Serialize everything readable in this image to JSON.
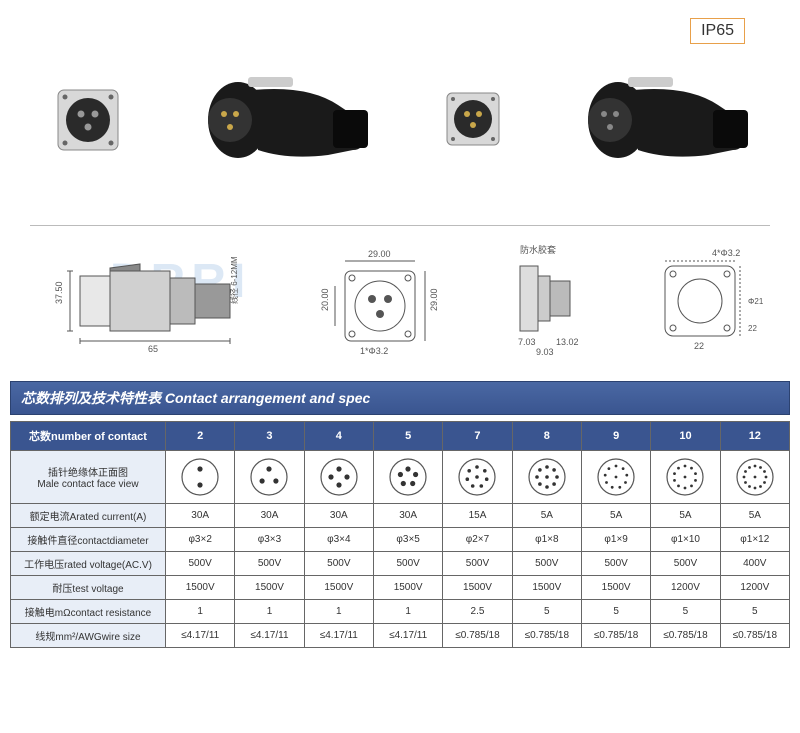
{
  "badge": {
    "text": "IP65",
    "border_color": "#e8a04a"
  },
  "watermark": "DRRI",
  "drawings": {
    "plug": {
      "length": "65",
      "height": "37.50",
      "cable_note": "线径 6-12MM"
    },
    "socket": {
      "width": "29.00",
      "height": "29.00",
      "inner_h": "20.00",
      "hole": "1*Φ3.2"
    },
    "side": {
      "label": "防水胶套",
      "d1": "7.03",
      "d2": "9.03",
      "d3": "13.02"
    },
    "mount": {
      "hole": "4*Φ3.2",
      "dia": "Φ21",
      "w": "22",
      "w2": "22"
    }
  },
  "section_title": "芯数排列及技术特性表  Contact arrangement and spec",
  "table": {
    "header_label": "芯数number of contact",
    "columns": [
      "2",
      "3",
      "4",
      "5",
      "7",
      "8",
      "9",
      "10",
      "12"
    ],
    "pin_counts": [
      2,
      3,
      4,
      5,
      7,
      8,
      9,
      10,
      12
    ],
    "rows": [
      {
        "label": "插针绝缘体正面图\nMale contact face view",
        "type": "face"
      },
      {
        "label": "额定电流Arated current(A)",
        "cells": [
          "30A",
          "30A",
          "30A",
          "30A",
          "15A",
          "5A",
          "5A",
          "5A",
          "5A"
        ]
      },
      {
        "label": "接触件直径contactdiameter",
        "cells": [
          "φ3×2",
          "φ3×3",
          "φ3×4",
          "φ3×5",
          "φ2×7",
          "φ1×8",
          "φ1×9",
          "φ1×10",
          "φ1×12"
        ]
      },
      {
        "label": "工作电压rated voltage(AC.V)",
        "cells": [
          "500V",
          "500V",
          "500V",
          "500V",
          "500V",
          "500V",
          "500V",
          "500V",
          "400V"
        ]
      },
      {
        "label": "耐压test voltage",
        "cells": [
          "1500V",
          "1500V",
          "1500V",
          "1500V",
          "1500V",
          "1500V",
          "1500V",
          "1200V",
          "1200V"
        ]
      },
      {
        "label": "接触电mΩcontact resistance",
        "cells": [
          "1",
          "1",
          "1",
          "1",
          "2.5",
          "5",
          "5",
          "5",
          "5"
        ]
      },
      {
        "label": "线规mm²/AWGwire size",
        "cells": [
          "≤4.17/11",
          "≤4.17/11",
          "≤4.17/11",
          "≤4.17/11",
          "≤0.785/18",
          "≤0.785/18",
          "≤0.785/18",
          "≤0.785/18",
          "≤0.785/18"
        ]
      }
    ]
  },
  "colors": {
    "header_bg": "#3a5590",
    "label_bg": "#e8eef7",
    "border": "#666666"
  }
}
